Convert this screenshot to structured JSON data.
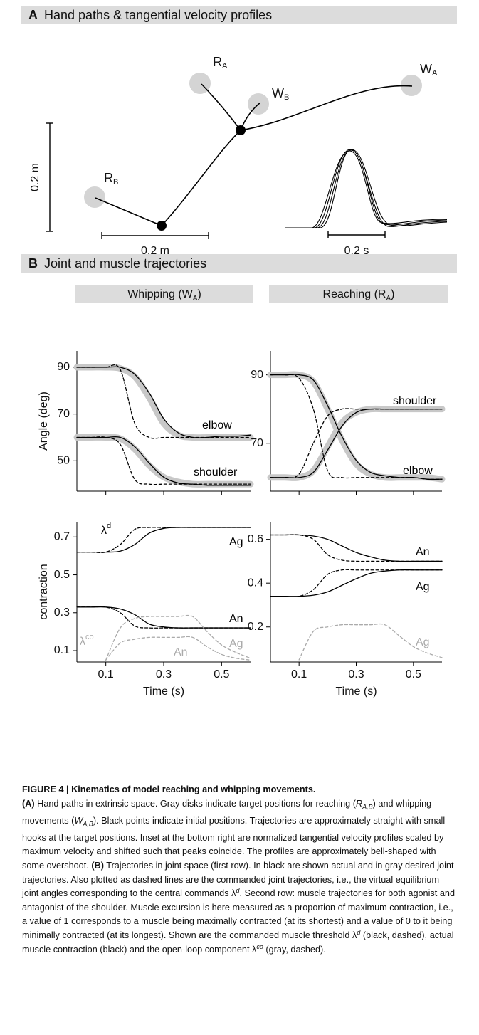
{
  "panel_a": {
    "label": "A",
    "title": "Hand paths & tangential velocity profiles",
    "targets": [
      {
        "text": "R",
        "sub": "A"
      },
      {
        "text": "W",
        "sub": "B"
      },
      {
        "text": "W",
        "sub": "A"
      },
      {
        "text": "R",
        "sub": "B"
      }
    ],
    "scale_bars": [
      "0.2 m",
      "0.2 m",
      "0.2 s"
    ]
  },
  "panel_b": {
    "label": "B",
    "title": "Joint and muscle trajectories",
    "columns": [
      {
        "text": "Whipping (W",
        "sub": "A",
        "tail": ")"
      },
      {
        "text": "Reaching (R",
        "sub": "A",
        "tail": ")"
      }
    ]
  },
  "chart_data": [
    {
      "type": "line",
      "ylabel": "Angle (deg)",
      "x": [
        0,
        0.05,
        0.1,
        0.15,
        0.2,
        0.25,
        0.3,
        0.35,
        0.4,
        0.45,
        0.5,
        0.55,
        0.6
      ],
      "xlim": [
        0,
        0.6
      ],
      "xticks": [
        0.1,
        0.3,
        0.5
      ],
      "xtick_labels": false,
      "ylim": [
        37,
        97
      ],
      "yticks": [
        90,
        70,
        50
      ],
      "series": [
        {
          "color": "#c8c8c8",
          "width": 9,
          "dash": false,
          "values": [
            90,
            90,
            90,
            89.5,
            86,
            77,
            66,
            61,
            60,
            60,
            60,
            60,
            60
          ]
        },
        {
          "color": "#c8c8c8",
          "width": 9,
          "dash": false,
          "values": [
            60,
            60,
            60,
            59.5,
            55,
            48,
            43,
            41,
            40,
            40,
            40,
            40,
            40
          ]
        },
        {
          "color": "#000000",
          "width": 1.3,
          "dash": false,
          "values": [
            90,
            90,
            90,
            90,
            87,
            79,
            68,
            62,
            60,
            60,
            60.5,
            60.5,
            61
          ]
        },
        {
          "color": "#000000",
          "width": 1.3,
          "dash": true,
          "values": [
            90,
            90,
            90,
            89,
            66,
            60,
            60,
            60,
            60,
            60,
            60,
            60,
            60
          ]
        },
        {
          "color": "#000000",
          "width": 1.3,
          "dash": false,
          "values": [
            60,
            60,
            60,
            60,
            56,
            49,
            43,
            40.5,
            40,
            39.5,
            39.5,
            39.5,
            39.5
          ]
        },
        {
          "color": "#000000",
          "width": 1.3,
          "dash": true,
          "values": [
            60,
            60,
            60,
            57,
            42,
            40,
            40,
            40,
            40,
            40,
            40,
            40,
            40
          ]
        }
      ],
      "annotations": [
        {
          "text": "elbow",
          "color": "#000000"
        },
        {
          "text": "shoulder",
          "color": "#000000"
        }
      ]
    },
    {
      "type": "line",
      "x": [
        0,
        0.05,
        0.1,
        0.15,
        0.2,
        0.25,
        0.3,
        0.35,
        0.4,
        0.45,
        0.5,
        0.55,
        0.6
      ],
      "xlim": [
        0,
        0.6
      ],
      "xticks": [
        0.1,
        0.3,
        0.5
      ],
      "xtick_labels": false,
      "ylim": [
        56,
        97
      ],
      "yticks": [
        90,
        70
      ],
      "series": [
        {
          "color": "#c8c8c8",
          "width": 9,
          "dash": false,
          "values": [
            90,
            90,
            90,
            88,
            80,
            71,
            64,
            61,
            60,
            60,
            60,
            60,
            59.5
          ]
        },
        {
          "color": "#c8c8c8",
          "width": 9,
          "dash": false,
          "values": [
            60,
            60,
            60,
            62,
            69,
            76,
            79,
            80,
            80,
            80,
            80,
            80,
            80
          ]
        },
        {
          "color": "#000000",
          "width": 1.3,
          "dash": false,
          "values": [
            90,
            90,
            90,
            88.5,
            81,
            72,
            65,
            61.5,
            60.5,
            60,
            60,
            59.5,
            59.5
          ]
        },
        {
          "color": "#000000",
          "width": 1.3,
          "dash": true,
          "values": [
            90,
            90,
            89,
            80,
            62,
            60,
            60,
            60,
            60,
            60,
            60,
            59.5,
            59.5
          ]
        },
        {
          "color": "#000000",
          "width": 1.3,
          "dash": false,
          "values": [
            60,
            60,
            60,
            61.5,
            68,
            75,
            79,
            80,
            80,
            80,
            80,
            80,
            80
          ]
        },
        {
          "color": "#000000",
          "width": 1.3,
          "dash": true,
          "values": [
            60,
            60,
            61,
            70,
            78,
            80,
            80,
            80,
            80,
            80,
            80,
            80,
            80
          ]
        }
      ],
      "annotations": [
        {
          "text": "shoulder",
          "color": "#000000"
        },
        {
          "text": "elbow",
          "color": "#000000"
        }
      ]
    },
    {
      "type": "line",
      "ylabel": "contraction",
      "xlabel": "Time (s)",
      "x": [
        0,
        0.05,
        0.1,
        0.15,
        0.2,
        0.25,
        0.3,
        0.35,
        0.4,
        0.45,
        0.5,
        0.55,
        0.6
      ],
      "xlim": [
        0,
        0.6
      ],
      "xticks": [
        0.1,
        0.3,
        0.5
      ],
      "ylim": [
        0.04,
        0.78
      ],
      "yticks": [
        0.7,
        0.5,
        0.3,
        0.1
      ],
      "series": [
        {
          "color": "#000000",
          "width": 1.3,
          "dash": false,
          "values": [
            0.62,
            0.62,
            0.62,
            0.625,
            0.66,
            0.72,
            0.745,
            0.75,
            0.75,
            0.75,
            0.75,
            0.75,
            0.75
          ]
        },
        {
          "color": "#000000",
          "width": 1.3,
          "dash": true,
          "values": [
            0.62,
            0.62,
            0.62,
            0.66,
            0.74,
            0.75,
            0.75,
            0.75,
            0.75,
            0.75,
            0.75,
            0.75,
            0.75
          ]
        },
        {
          "color": "#000000",
          "width": 1.3,
          "dash": false,
          "values": [
            0.33,
            0.33,
            0.33,
            0.32,
            0.29,
            0.24,
            0.225,
            0.22,
            0.22,
            0.22,
            0.22,
            0.22,
            0.22
          ]
        },
        {
          "color": "#000000",
          "width": 1.3,
          "dash": true,
          "values": [
            0.33,
            0.33,
            0.33,
            0.3,
            0.23,
            0.22,
            0.22,
            0.22,
            0.22,
            0.22,
            0.22,
            0.22,
            0.22
          ]
        },
        {
          "color": "#aaaaaa",
          "width": 1.3,
          "dash": true,
          "values": [
            null,
            null,
            0.05,
            0.22,
            0.27,
            0.28,
            0.28,
            0.28,
            0.28,
            0.2,
            0.13,
            0.09,
            0.06
          ]
        },
        {
          "color": "#aaaaaa",
          "width": 1.3,
          "dash": true,
          "values": [
            null,
            null,
            0.05,
            0.14,
            0.16,
            0.17,
            0.17,
            0.17,
            0.17,
            0.12,
            0.08,
            0.06,
            0.05
          ]
        }
      ],
      "annotations": [
        {
          "text": "λ",
          "sup": "d",
          "color": "#000000"
        },
        {
          "text": "Ag",
          "color": "#000000"
        },
        {
          "text": "An",
          "color": "#000000"
        },
        {
          "text": "λ",
          "sup": "co",
          "color": "#aaaaaa"
        },
        {
          "text": "Ag",
          "color": "#aaaaaa"
        },
        {
          "text": "An",
          "color": "#aaaaaa"
        }
      ]
    },
    {
      "type": "line",
      "xlabel": "Time (s)",
      "x": [
        0,
        0.05,
        0.1,
        0.15,
        0.2,
        0.25,
        0.3,
        0.35,
        0.4,
        0.45,
        0.5,
        0.55,
        0.6
      ],
      "xlim": [
        0,
        0.6
      ],
      "xticks": [
        0.1,
        0.3,
        0.5
      ],
      "ylim": [
        0.04,
        0.68
      ],
      "yticks": [
        0.6,
        0.4,
        0.2
      ],
      "series": [
        {
          "color": "#000000",
          "width": 1.3,
          "dash": false,
          "values": [
            0.62,
            0.62,
            0.62,
            0.615,
            0.6,
            0.57,
            0.54,
            0.52,
            0.505,
            0.5,
            0.5,
            0.5,
            0.5
          ]
        },
        {
          "color": "#000000",
          "width": 1.3,
          "dash": true,
          "values": [
            0.62,
            0.62,
            0.62,
            0.6,
            0.53,
            0.505,
            0.5,
            0.5,
            0.5,
            0.5,
            0.5,
            0.5,
            0.5
          ]
        },
        {
          "color": "#000000",
          "width": 1.3,
          "dash": false,
          "values": [
            0.34,
            0.34,
            0.34,
            0.345,
            0.36,
            0.39,
            0.42,
            0.445,
            0.455,
            0.46,
            0.46,
            0.46,
            0.46
          ]
        },
        {
          "color": "#000000",
          "width": 1.3,
          "dash": true,
          "values": [
            0.34,
            0.34,
            0.34,
            0.37,
            0.44,
            0.46,
            0.46,
            0.46,
            0.46,
            0.46,
            0.46,
            0.46,
            0.46
          ]
        },
        {
          "color": "#aaaaaa",
          "width": 1.3,
          "dash": true,
          "values": [
            null,
            null,
            0.05,
            0.18,
            0.2,
            0.21,
            0.21,
            0.21,
            0.21,
            0.16,
            0.11,
            0.08,
            0.06
          ]
        }
      ],
      "annotations": [
        {
          "text": "An",
          "color": "#000000"
        },
        {
          "text": "Ag",
          "color": "#000000"
        },
        {
          "text": "Ag",
          "color": "#aaaaaa"
        }
      ]
    }
  ],
  "caption": {
    "runs": [
      {
        "style": "bold",
        "text": "FIGURE 4 | Kinematics of model reaching and whipping movements."
      },
      {
        "style": "break",
        "text": ""
      },
      {
        "style": "bold",
        "text": "(A)"
      },
      {
        "style": "plain",
        "text": " Hand paths in extrinsic space. Gray disks indicate target positions for reaching ("
      },
      {
        "style": "italic",
        "text": "R"
      },
      {
        "style": "italic-sub",
        "text": "A,B"
      },
      {
        "style": "plain",
        "text": ") and whipping movements ("
      },
      {
        "style": "italic",
        "text": "W"
      },
      {
        "style": "italic-sub",
        "text": "A,B"
      },
      {
        "style": "plain",
        "text": "). Black points indicate initial positions. Trajectories are approximately straight with small hooks at the target positions. Inset at the bottom right are normalized tangential velocity profiles scaled by maximum velocity and shifted such that peaks coincide. The profiles are approximately bell-shaped with some overshoot. "
      },
      {
        "style": "bold",
        "text": "(B)"
      },
      {
        "style": "plain",
        "text": " Trajectories in joint space (first row). In black are shown actual and in gray desired joint trajectories. Also plotted as dashed lines are the commanded joint trajectories, i.e., the virtual equilibrium joint angles corresponding to the central commands λ"
      },
      {
        "style": "italic-sup",
        "text": "d"
      },
      {
        "style": "plain",
        "text": ". Second row: muscle trajectories for both agonist and antagonist of the shoulder. Muscle excursion is here measured as a proportion of maximum contraction, i.e., a value of 1 corresponds to a muscle being maximally contracted (at its shortest) and a value of 0 to it being minimally contracted (at its longest). Shown are the commanded muscle threshold λ"
      },
      {
        "style": "italic-sup",
        "text": "d"
      },
      {
        "style": "plain",
        "text": " (black, dashed), actual muscle contraction (black) and the open-loop component λ"
      },
      {
        "style": "italic-sup",
        "text": "co"
      },
      {
        "style": "plain",
        "text": " (gray, dashed)."
      }
    ]
  }
}
